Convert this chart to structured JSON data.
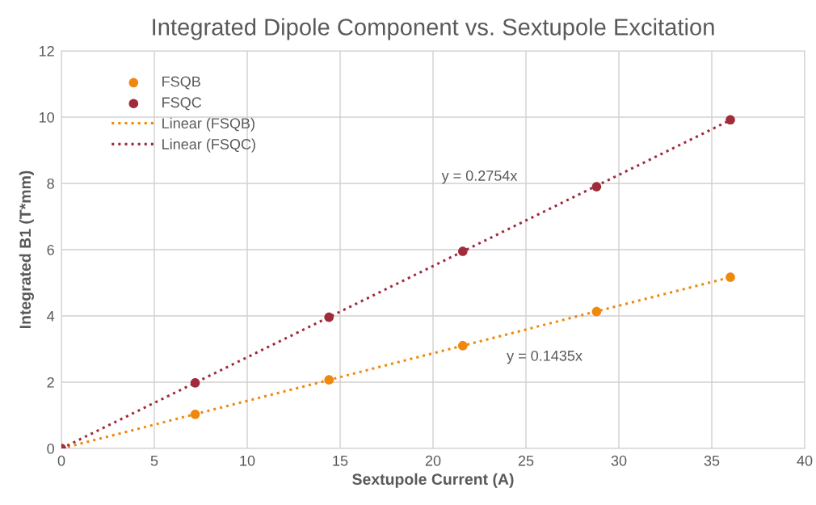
{
  "chart_data": {
    "type": "scatter",
    "title": "Integrated Dipole Component vs. Sextupole Excitation",
    "xlabel": "Sextupole Current (A)",
    "ylabel": "Integrated B1 (T*mm)",
    "series": [
      {
        "name": "FSQB",
        "color": "#f0880e",
        "marker": "circle",
        "x": [
          0,
          7.2,
          14.4,
          21.6,
          28.8,
          36
        ],
        "values": [
          0,
          1.03,
          2.07,
          3.1,
          4.13,
          5.17
        ]
      },
      {
        "name": "FSQC",
        "color": "#a02b3b",
        "marker": "circle",
        "x": [
          0,
          7.2,
          14.4,
          21.6,
          28.8,
          36
        ],
        "values": [
          0,
          1.98,
          3.96,
          5.95,
          7.9,
          9.92
        ]
      },
      {
        "name": "Linear (FSQB)",
        "type": "line",
        "color": "#f0880e",
        "line_style": "dotted",
        "marker": "none",
        "x": [
          0,
          36
        ],
        "values": [
          0,
          5.17
        ]
      },
      {
        "name": "Linear (FSQC)",
        "type": "line",
        "color": "#a02b3b",
        "line_style": "dotted",
        "marker": "none",
        "x": [
          0,
          36
        ],
        "values": [
          0,
          9.91
        ]
      }
    ],
    "annotations": [
      "y = 0.2754x",
      "y = 0.1435x"
    ],
    "xlim": [
      0,
      40
    ],
    "xticks": [
      0,
      5,
      10,
      15,
      20,
      25,
      30,
      35,
      40
    ],
    "ylim": [
      0,
      12
    ],
    "yticks": [
      0,
      2,
      4,
      6,
      8,
      10,
      12
    ],
    "grid": true,
    "legend": "top left"
  }
}
